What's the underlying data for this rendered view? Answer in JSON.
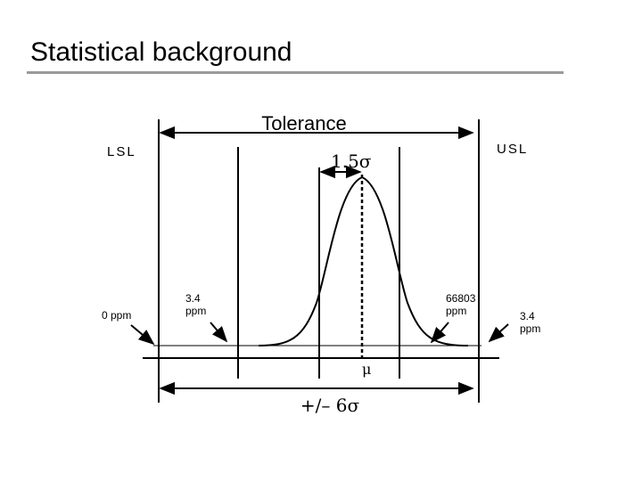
{
  "title": "Statistical background",
  "diagram": {
    "tolerance_label": "Tolerance",
    "lsl_label": "LSL",
    "usl_label": "USL",
    "shift_label": "1.5σ",
    "mean_label": "μ",
    "span_label": "+/– 6σ",
    "annotations": {
      "lsl_left_line1": "0 ppm",
      "lsl_right_line1": "3.4",
      "lsl_right_line2": "ppm",
      "usl_left_line1": "66803",
      "usl_left_line2": "ppm",
      "usl_right_line1": "3.4",
      "usl_right_line2": "ppm"
    }
  }
}
